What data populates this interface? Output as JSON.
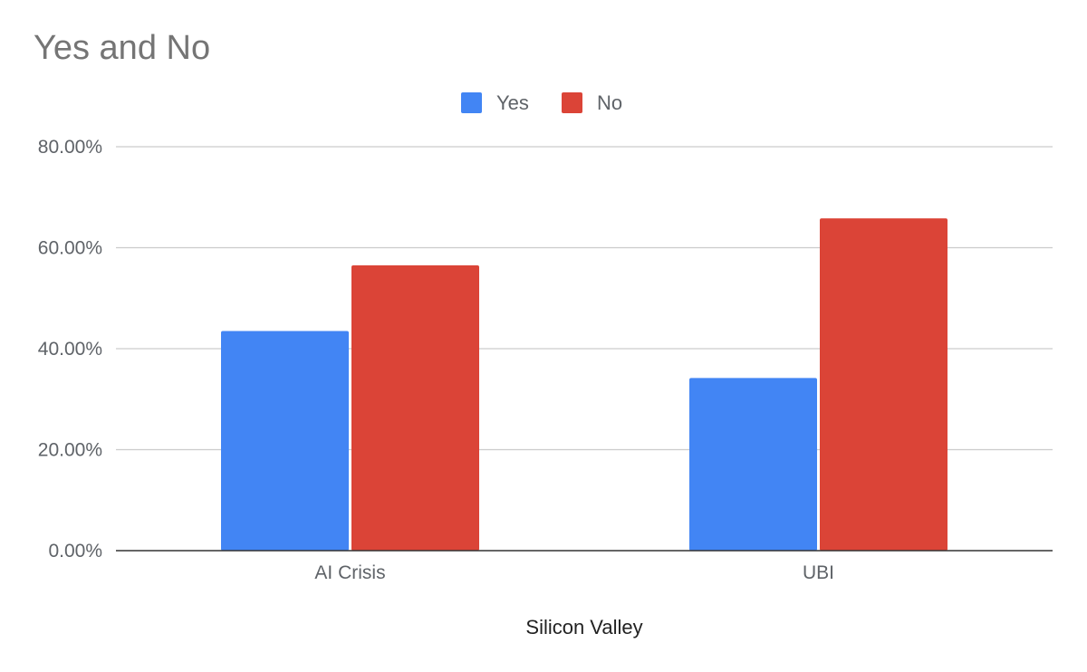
{
  "chart_data": {
    "type": "bar",
    "title": "Yes and No",
    "xlabel": "Silicon Valley",
    "ylabel": "",
    "categories": [
      "AI Crisis",
      "UBI"
    ],
    "series": [
      {
        "name": "Yes",
        "color": "#4285f4",
        "values": [
          43.5,
          34.2
        ]
      },
      {
        "name": "No",
        "color": "#db4437",
        "values": [
          56.5,
          65.8
        ]
      }
    ],
    "ylim": [
      0,
      80
    ],
    "yticks": [
      0,
      20,
      40,
      60,
      80
    ],
    "ytick_labels": [
      "0.00%",
      "20.00%",
      "40.00%",
      "60.00%",
      "80.00%"
    ],
    "grid": true,
    "legend_position": "top-center"
  }
}
